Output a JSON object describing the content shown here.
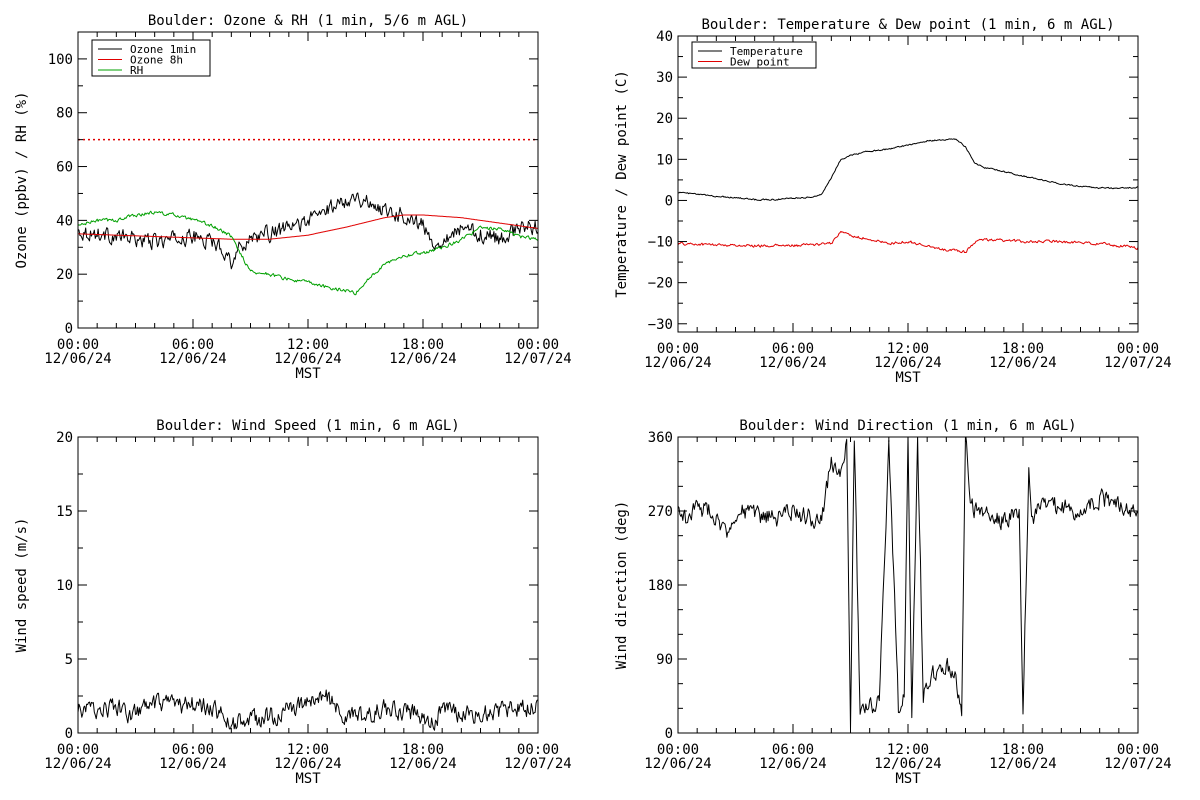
{
  "chart_data": [
    {
      "type": "line",
      "title": "Boulder: Ozone & RH (1 min, 5/6 m AGL)",
      "ylabel": "Ozone (ppbv) / RH (%)",
      "xlabel": "MST",
      "xlim": [
        0,
        24
      ],
      "ylim": [
        0,
        110
      ],
      "x_ticks": [
        0,
        6,
        12,
        18,
        24
      ],
      "x_tick_labels": [
        [
          "00:00",
          "12/06/24"
        ],
        [
          "06:00",
          "12/06/24"
        ],
        [
          "12:00",
          "12/06/24"
        ],
        [
          "18:00",
          "12/06/24"
        ],
        [
          "00:00",
          "12/07/24"
        ]
      ],
      "y_ticks": [
        0,
        20,
        40,
        60,
        80,
        100
      ],
      "y_tick_labels": [
        "0",
        "20",
        "40",
        "60",
        "80",
        "100"
      ],
      "legend_position": "top-left",
      "reference_lines": [
        {
          "y": 70,
          "color": "#e00000",
          "style": "dotted"
        }
      ],
      "series": [
        {
          "name": "Ozone 1min",
          "color": "#000000",
          "noise": 2.5,
          "x": [
            0,
            1,
            2,
            3,
            4,
            5,
            6,
            7,
            7.5,
            8,
            8.5,
            9,
            10,
            11,
            12,
            13,
            14,
            14.5,
            15,
            16,
            17,
            18,
            18.5,
            19,
            20,
            21,
            22,
            23,
            24
          ],
          "y": [
            36,
            35,
            34,
            33,
            32,
            33,
            34,
            32,
            30,
            25,
            30,
            34,
            35,
            37,
            40,
            44,
            48,
            49,
            47,
            44,
            42,
            38,
            31,
            33,
            37,
            35,
            33,
            37,
            38
          ]
        },
        {
          "name": "Ozone 8h",
          "color": "#e00000",
          "noise": 0,
          "x": [
            0,
            2,
            4,
            6,
            8,
            10,
            12,
            14,
            16,
            17,
            18,
            19,
            20,
            21,
            22,
            23,
            24
          ],
          "y": [
            35,
            34.5,
            34,
            33.5,
            33,
            33,
            34.5,
            37.5,
            41,
            42,
            42,
            41.5,
            41,
            40,
            39,
            38,
            37
          ]
        },
        {
          "name": "RH",
          "color": "#00a000",
          "noise": 0.6,
          "x": [
            0,
            1,
            2,
            3,
            4,
            5,
            6,
            7,
            7.5,
            8,
            9,
            10,
            11,
            12,
            13,
            14,
            14.5,
            15,
            16,
            17,
            18,
            19,
            20,
            21,
            22,
            23,
            24
          ],
          "y": [
            38,
            40,
            40,
            42,
            43,
            42,
            40,
            38,
            36,
            34,
            21,
            20,
            18,
            17,
            15,
            14,
            13,
            17,
            24,
            27,
            28,
            30,
            33,
            37,
            37,
            34,
            33
          ]
        }
      ]
    },
    {
      "type": "line",
      "title": "Boulder: Temperature & Dew point (1 min, 6 m AGL)",
      "ylabel": "Temperature / Dew point (C)",
      "xlabel": "MST",
      "xlim": [
        0,
        24
      ],
      "ylim": [
        -32,
        40
      ],
      "x_ticks": [
        0,
        6,
        12,
        18,
        24
      ],
      "x_tick_labels": [
        [
          "00:00",
          "12/06/24"
        ],
        [
          "06:00",
          "12/06/24"
        ],
        [
          "12:00",
          "12/06/24"
        ],
        [
          "18:00",
          "12/06/24"
        ],
        [
          "00:00",
          "12/07/24"
        ]
      ],
      "y_ticks": [
        -30,
        -20,
        -10,
        0,
        10,
        20,
        30,
        40
      ],
      "y_tick_labels": [
        "−30",
        "−20",
        "−10",
        "0",
        "10",
        "20",
        "30",
        "40"
      ],
      "legend_position": "top-left",
      "series": [
        {
          "name": "Temperature",
          "color": "#000000",
          "noise": 0.15,
          "x": [
            0,
            1,
            2,
            3,
            4,
            5,
            6,
            7,
            7.5,
            8,
            8.5,
            9,
            10,
            11,
            12,
            13,
            14,
            14.5,
            15,
            15.5,
            16,
            17,
            18,
            19,
            20,
            21,
            22,
            23,
            24
          ],
          "y": [
            2,
            1.5,
            1,
            0.7,
            0.2,
            0.2,
            0.6,
            0.8,
            1.5,
            5.5,
            10,
            11,
            12,
            12.5,
            13.5,
            14.5,
            14.8,
            15,
            13,
            9,
            8,
            7,
            6,
            5,
            4,
            3.5,
            3,
            3,
            3.2
          ]
        },
        {
          "name": "Dew point",
          "color": "#e00000",
          "noise": 0.3,
          "x": [
            0,
            2,
            4,
            6,
            8,
            8.5,
            9,
            10,
            11,
            12,
            13,
            14,
            15,
            15.5,
            16,
            18,
            20,
            22,
            24
          ],
          "y": [
            -10.5,
            -10.8,
            -11,
            -11,
            -10.5,
            -7.5,
            -8.5,
            -9.5,
            -10.5,
            -10,
            -11,
            -12,
            -12.5,
            -10,
            -9.5,
            -10,
            -10,
            -10.5,
            -11.5
          ]
        }
      ]
    },
    {
      "type": "line",
      "title": "Boulder: Wind Speed (1 min, 6 m AGL)",
      "ylabel": "Wind speed (m/s)",
      "xlabel": "MST",
      "xlim": [
        0,
        24
      ],
      "ylim": [
        0,
        20
      ],
      "x_ticks": [
        0,
        6,
        12,
        18,
        24
      ],
      "x_tick_labels": [
        [
          "00:00",
          "12/06/24"
        ],
        [
          "06:00",
          "12/06/24"
        ],
        [
          "12:00",
          "12/06/24"
        ],
        [
          "18:00",
          "12/06/24"
        ],
        [
          "00:00",
          "12/07/24"
        ]
      ],
      "y_ticks": [
        0,
        5,
        10,
        15,
        20
      ],
      "y_tick_labels": [
        "0",
        "5",
        "10",
        "15",
        "20"
      ],
      "series": [
        {
          "color": "#000000",
          "noise": 0.55,
          "x": [
            0,
            1,
            2,
            2.5,
            3,
            4,
            5,
            6,
            7,
            7.5,
            8,
            9,
            10,
            11,
            12,
            13,
            13.5,
            14,
            15,
            16,
            17,
            18,
            18.5,
            19,
            20,
            21,
            22,
            23,
            24
          ],
          "y": [
            1.5,
            1.6,
            1.8,
            1.2,
            1.4,
            1.9,
            1.8,
            1.9,
            1.7,
            1.2,
            0.6,
            0.9,
            1.1,
            1.5,
            2.1,
            2.5,
            1.6,
            1.0,
            1.1,
            1.7,
            1.4,
            1.2,
            0.6,
            1.5,
            1.3,
            1.3,
            1.5,
            1.6,
            1.9
          ]
        }
      ]
    },
    {
      "type": "line",
      "title": "Boulder: Wind Direction (1 min, 6 m AGL)",
      "ylabel": "Wind direction (deg)",
      "xlabel": "MST",
      "xlim": [
        0,
        24
      ],
      "ylim": [
        0,
        360
      ],
      "x_ticks": [
        0,
        6,
        12,
        18,
        24
      ],
      "x_tick_labels": [
        [
          "00:00",
          "12/06/24"
        ],
        [
          "06:00",
          "12/06/24"
        ],
        [
          "12:00",
          "12/06/24"
        ],
        [
          "18:00",
          "12/06/24"
        ],
        [
          "00:00",
          "12/07/24"
        ]
      ],
      "y_ticks": [
        0,
        90,
        180,
        270,
        360
      ],
      "y_tick_labels": [
        "0",
        "90",
        "180",
        "270",
        "360"
      ],
      "series": [
        {
          "color": "#000000",
          "noise": 10,
          "x": [
            0,
            0.5,
            1,
            2,
            2.5,
            3,
            4,
            5,
            6,
            7,
            7.5,
            8,
            8.5,
            8.8,
            9,
            9.2,
            9.5,
            10,
            10.5,
            11,
            11.5,
            11.8,
            12,
            12.2,
            12.5,
            12.8,
            13,
            13.5,
            14,
            14.5,
            14.8,
            15,
            15.3,
            16,
            17,
            17.8,
            18,
            18.3,
            18.5,
            19,
            20,
            21,
            22,
            23,
            24
          ],
          "y": [
            270,
            260,
            275,
            265,
            240,
            270,
            265,
            260,
            270,
            260,
            265,
            330,
            310,
            360,
            10,
            360,
            20,
            30,
            40,
            360,
            30,
            45,
            360,
            20,
            360,
            40,
            60,
            75,
            80,
            75,
            20,
            360,
            275,
            265,
            260,
            268,
            25,
            320,
            260,
            280,
            275,
            270,
            285,
            280,
            270
          ]
        }
      ]
    }
  ]
}
